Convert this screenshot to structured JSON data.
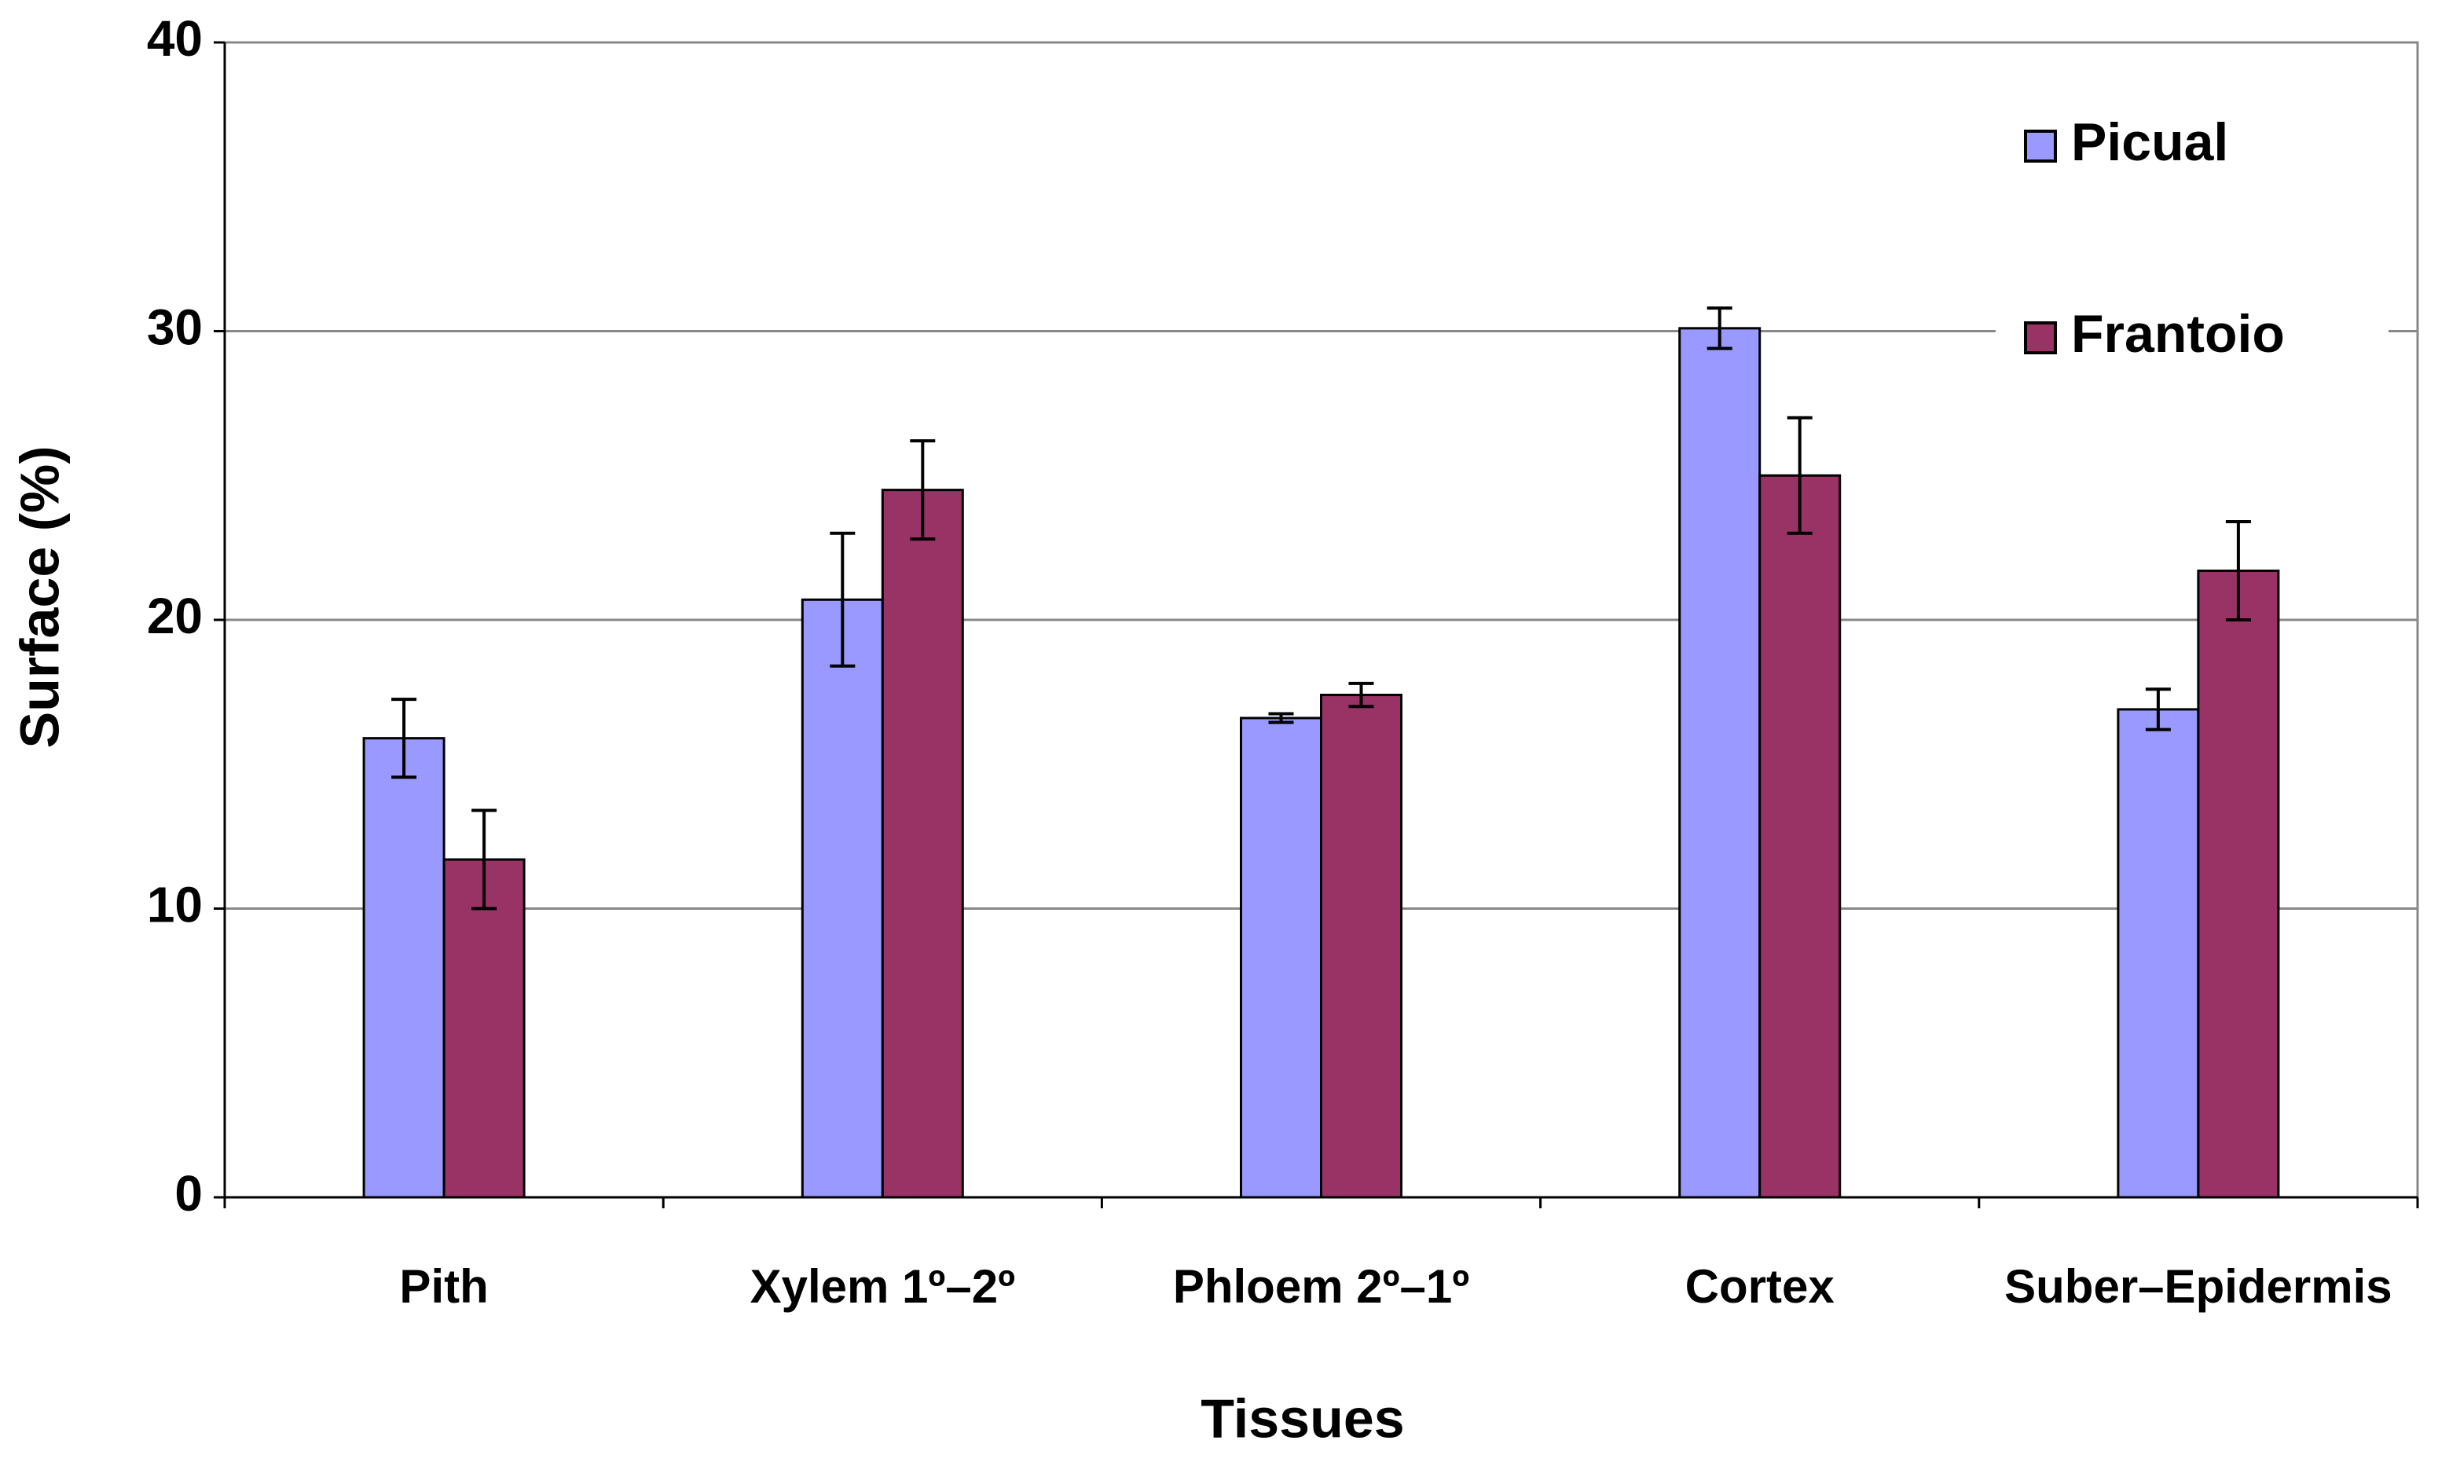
{
  "chart_data": {
    "type": "bar",
    "x_label": "Tissues",
    "y_label": "Surface (%)",
    "categories": [
      "Pith",
      "Xylem 1º–2º",
      "Phloem 2º–1º",
      "Cortex",
      "Suber–Epidermis"
    ],
    "series": [
      {
        "name": "Picual",
        "color": "#9999ff",
        "values": [
          15.9,
          20.7,
          16.6,
          30.1,
          16.9
        ],
        "errors": [
          1.35,
          2.3,
          0.15,
          0.7,
          0.7
        ]
      },
      {
        "name": "Frantoio",
        "color": "#993366",
        "values": [
          11.7,
          24.5,
          17.4,
          25.0,
          21.7
        ],
        "errors": [
          1.7,
          1.7,
          0.4,
          2.0,
          1.7
        ]
      }
    ],
    "ylim": [
      0,
      40
    ],
    "yticks": [
      0,
      10,
      20,
      30,
      40
    ],
    "grid": true,
    "legend": "upper right"
  }
}
